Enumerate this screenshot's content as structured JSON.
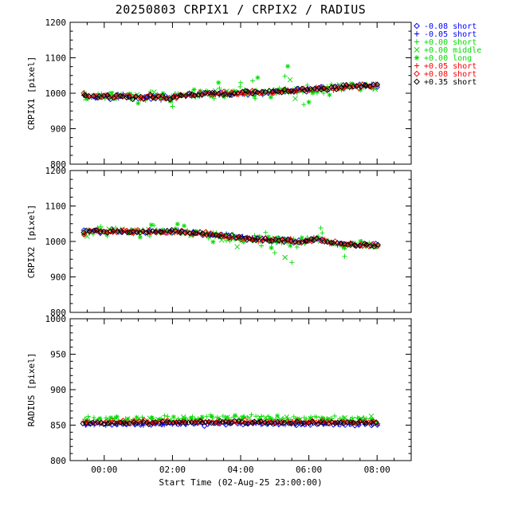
{
  "chart_data": {
    "type": "scatter",
    "title": "20250803 CRPIX1 / CRPIX2 / RADIUS",
    "xlabel": "Start Time (02-Aug-25 23:00:00)",
    "legend_position": "top-right",
    "axes_color": "#000000",
    "t_range": [
      0.35,
      9.05
    ],
    "x_axis": {
      "lim": [
        0,
        10
      ],
      "major_ticks": [
        {
          "t": 1,
          "label": "00:00"
        },
        {
          "t": 3,
          "label": "02:00"
        },
        {
          "t": 5,
          "label": "04:00"
        },
        {
          "t": 7,
          "label": "06:00"
        },
        {
          "t": 9,
          "label": "08:00"
        }
      ],
      "minor_step": 0.5
    },
    "panels": [
      {
        "name": "CRPIX1",
        "ylabel": "CRPIX1 [pixel]",
        "ylim": [
          800,
          1200
        ],
        "major_ticks": [
          800,
          900,
          1000,
          1100,
          1200
        ],
        "minor_step": 25,
        "trend": [
          [
            0.35,
            995
          ],
          [
            0.6,
            989
          ],
          [
            0.9,
            992
          ],
          [
            1.2,
            989
          ],
          [
            1.5,
            993
          ],
          [
            1.8,
            990
          ],
          [
            2.1,
            989
          ],
          [
            2.4,
            991
          ],
          [
            2.7,
            988
          ],
          [
            3.0,
            987
          ],
          [
            3.2,
            994
          ],
          [
            3.5,
            996
          ],
          [
            3.8,
            998
          ],
          [
            4.1,
            998
          ],
          [
            4.4,
            1000
          ],
          [
            4.7,
            1000
          ],
          [
            5.0,
            1001
          ],
          [
            5.3,
            1002
          ],
          [
            5.6,
            1003
          ],
          [
            5.9,
            1004
          ],
          [
            6.2,
            1005
          ],
          [
            6.5,
            1007
          ],
          [
            6.8,
            1010
          ],
          [
            7.0,
            1008
          ],
          [
            7.2,
            1013
          ],
          [
            7.5,
            1011
          ],
          [
            7.8,
            1016
          ],
          [
            8.1,
            1019
          ],
          [
            8.4,
            1020
          ],
          [
            8.7,
            1021
          ],
          [
            9.05,
            1021
          ]
        ],
        "outliers": [
          {
            "series": "p000_long",
            "t": 6.38,
            "v": 1076
          },
          {
            "series": "p000_short",
            "t": 6.3,
            "v": 1048
          },
          {
            "series": "p000_middle",
            "t": 6.45,
            "v": 1038
          },
          {
            "series": "p000_short",
            "t": 5.35,
            "v": 1035
          },
          {
            "series": "p000_long",
            "t": 5.5,
            "v": 1044
          },
          {
            "series": "p000_short",
            "t": 5.0,
            "v": 1030
          },
          {
            "series": "p000_short",
            "t": 6.85,
            "v": 968
          },
          {
            "series": "p000_long",
            "t": 7.0,
            "v": 975
          },
          {
            "series": "p000_middle",
            "t": 6.6,
            "v": 985
          },
          {
            "series": "p000_short",
            "t": 3.0,
            "v": 963
          },
          {
            "series": "p000_long",
            "t": 4.35,
            "v": 1030
          }
        ]
      },
      {
        "name": "CRPIX2",
        "ylabel": "CRPIX2 [pixel]",
        "ylim": [
          800,
          1200
        ],
        "major_ticks": [
          800,
          900,
          1000,
          1100,
          1200
        ],
        "minor_step": 25,
        "trend": [
          [
            0.35,
            1024
          ],
          [
            0.7,
            1029
          ],
          [
            1.0,
            1027
          ],
          [
            1.3,
            1030
          ],
          [
            1.6,
            1028
          ],
          [
            1.9,
            1030
          ],
          [
            2.2,
            1027
          ],
          [
            2.5,
            1030
          ],
          [
            2.8,
            1026
          ],
          [
            3.1,
            1029
          ],
          [
            3.4,
            1026
          ],
          [
            3.7,
            1023
          ],
          [
            4.0,
            1020
          ],
          [
            4.3,
            1017
          ],
          [
            4.6,
            1013
          ],
          [
            4.9,
            1011
          ],
          [
            5.2,
            1008
          ],
          [
            5.5,
            1006
          ],
          [
            5.8,
            1005
          ],
          [
            6.1,
            1003
          ],
          [
            6.4,
            1002
          ],
          [
            6.7,
            1000
          ],
          [
            7.0,
            999
          ],
          [
            7.2,
            1010
          ],
          [
            7.4,
            1004
          ],
          [
            7.6,
            997
          ],
          [
            7.9,
            993
          ],
          [
            8.2,
            991
          ],
          [
            8.5,
            990
          ],
          [
            8.8,
            989
          ],
          [
            9.05,
            988
          ]
        ],
        "outliers": [
          {
            "series": "p000_long",
            "t": 3.15,
            "v": 1049
          },
          {
            "series": "p000_short",
            "t": 6.5,
            "v": 941
          },
          {
            "series": "p000_middle",
            "t": 6.3,
            "v": 955
          },
          {
            "series": "p000_short",
            "t": 6.0,
            "v": 968
          },
          {
            "series": "p000_long",
            "t": 5.9,
            "v": 982
          },
          {
            "series": "p000_short",
            "t": 7.35,
            "v": 1038
          },
          {
            "series": "p000_short",
            "t": 8.05,
            "v": 958
          },
          {
            "series": "p000_middle",
            "t": 4.9,
            "v": 985
          }
        ]
      },
      {
        "name": "RADIUS",
        "ylabel": "RADIUS [pixel]",
        "ylim": [
          800,
          1000
        ],
        "major_ticks": [
          800,
          850,
          900,
          950,
          1000
        ],
        "minor_step": 10,
        "trend": [
          [
            0.35,
            853
          ],
          [
            4.0,
            854
          ],
          [
            9.05,
            853
          ]
        ],
        "outliers": []
      }
    ],
    "series": [
      {
        "id": "m008_short",
        "label": "-0.08 short",
        "color": "#0000ff",
        "symbol": "diamond",
        "count": 55,
        "noise": [
          3,
          3,
          1.0
        ],
        "offset": [
          0,
          0,
          -2
        ]
      },
      {
        "id": "m005_short",
        "label": "-0.05 short",
        "color": "#0000ff",
        "symbol": "plus",
        "count": 55,
        "noise": [
          3,
          3,
          1.0
        ],
        "offset": [
          0,
          0,
          -2
        ]
      },
      {
        "id": "p000_short",
        "label": "+0.00 short",
        "color": "#00dd00",
        "symbol": "plus",
        "count": 85,
        "noise": [
          7,
          7,
          2.0
        ],
        "offset": [
          0,
          0,
          6
        ]
      },
      {
        "id": "p000_middle",
        "label": "+0.00 middle",
        "color": "#00dd00",
        "symbol": "cross",
        "count": 28,
        "noise": [
          6,
          6,
          2.0
        ],
        "offset": [
          0,
          0,
          6
        ]
      },
      {
        "id": "p000_long",
        "label": "+0.00 long",
        "color": "#00dd00",
        "symbol": "asterisk",
        "count": 28,
        "noise": [
          9,
          9,
          2.0
        ],
        "offset": [
          0,
          0,
          6
        ]
      },
      {
        "id": "p005_short",
        "label": "+0.05 short",
        "color": "#ff0000",
        "symbol": "plus",
        "count": 70,
        "noise": [
          3,
          3,
          1.0
        ],
        "offset": [
          0,
          0,
          1
        ]
      },
      {
        "id": "p008_short",
        "label": "+0.08 short",
        "color": "#ff0000",
        "symbol": "diamond",
        "count": 70,
        "noise": [
          3,
          3,
          1.0
        ],
        "offset": [
          0,
          0,
          1
        ]
      },
      {
        "id": "p035_short",
        "label": "+0.35 short",
        "color": "#000000",
        "symbol": "diamond",
        "count": 90,
        "noise": [
          2.5,
          2.5,
          0.9
        ],
        "offset": [
          0,
          0,
          0
        ]
      }
    ]
  }
}
